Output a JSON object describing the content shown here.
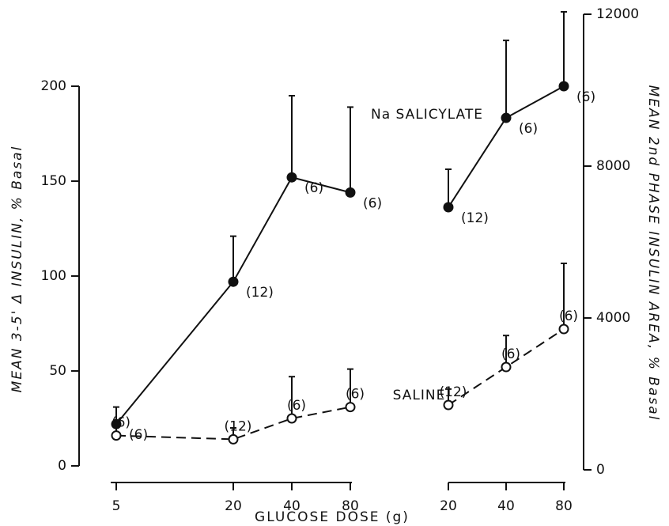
{
  "chart_data": [
    {
      "type": "line",
      "xscale": "log",
      "axis_side": "left",
      "ylabel": "MEAN 3-5' Δ INSULIN, % Basal",
      "xlabel": "GLUCOSE DOSE (g)",
      "x": [
        5,
        20,
        40,
        80
      ],
      "xlim": [
        5,
        80
      ],
      "xticks": [
        5,
        20,
        40,
        80
      ],
      "ylim": [
        0,
        200
      ],
      "yticks": [
        0,
        50,
        100,
        150,
        200
      ],
      "series": [
        {
          "name": "Na SALICYLATE",
          "color": "#111111",
          "marker": "filled",
          "dash": false,
          "values": [
            22,
            97,
            152,
            144
          ],
          "errors": [
            9,
            24,
            43,
            45
          ],
          "n_labels": [
            "(6)",
            "(12)",
            "(6)",
            "(6)"
          ]
        },
        {
          "name": "SALINE",
          "color": "#111111",
          "marker": "open",
          "dash": true,
          "values": [
            16,
            14,
            25,
            31
          ],
          "errors": [
            8,
            6,
            22,
            20
          ],
          "n_labels": [
            "(6)",
            "(12)",
            "(6)",
            "(6)"
          ]
        }
      ]
    },
    {
      "type": "line",
      "xscale": "log",
      "axis_side": "right",
      "ylabel": "MEAN 2nd PHASE INSULIN AREA, % Basal",
      "x": [
        20,
        40,
        80
      ],
      "xlim": [
        20,
        80
      ],
      "xticks": [
        20,
        40,
        80
      ],
      "ylim": [
        0,
        12000
      ],
      "yticks": [
        0,
        4000,
        8000,
        12000
      ],
      "series": [
        {
          "color": "#111111",
          "marker": "filled",
          "dash": false,
          "values": [
            6917,
            9270,
            10104
          ],
          "errors": [
            1000,
            2040,
            1960
          ],
          "n_labels": [
            "(12)",
            "(6)",
            "(6)"
          ]
        },
        {
          "color": "#111111",
          "marker": "open",
          "dash": true,
          "values": [
            1708,
            2708,
            3708
          ],
          "errors": [
            420,
            830,
            1730
          ],
          "n_labels": [
            "(12)",
            "(6)",
            "(6)"
          ]
        }
      ]
    }
  ]
}
